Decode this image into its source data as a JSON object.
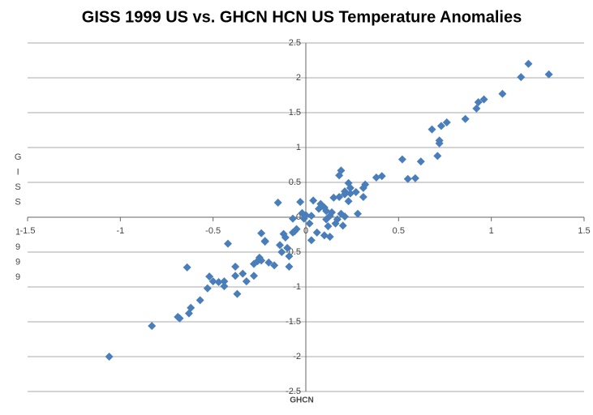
{
  "chart_data": {
    "type": "scatter",
    "title": "GISS 1999 US  vs. GHCN HCN US Temperature Anomalies",
    "x_label": "GHCN",
    "y_label": "GISS 1999",
    "color": "#4a7ebb",
    "grid": true,
    "xlim": [
      -1.5,
      1.5
    ],
    "xticks": [
      -1.5,
      -1,
      -0.5,
      0,
      0.5,
      1,
      1.5
    ],
    "ylim": [
      -2.5,
      2.5
    ],
    "yticks": [
      -2.5,
      -2,
      -1.5,
      -1,
      -0.5,
      0,
      0.5,
      1,
      1.5,
      2,
      2.5
    ],
    "x": [
      -1.06,
      -0.83,
      -0.69,
      -0.68,
      -0.63,
      -0.62,
      -0.64,
      -0.57,
      -0.53,
      -0.52,
      -0.5,
      -0.47,
      -0.44,
      -0.44,
      -0.42,
      -0.38,
      -0.38,
      -0.37,
      -0.34,
      -0.32,
      -0.28,
      -0.28,
      -0.26,
      -0.25,
      -0.24,
      -0.22,
      -0.22,
      -0.24,
      -0.2,
      -0.17,
      -0.15,
      -0.14,
      -0.13,
      -0.12,
      -0.11,
      -0.1,
      -0.09,
      -0.09,
      -0.07,
      -0.07,
      -0.06,
      -0.05,
      -0.03,
      -0.02,
      -0.01,
      0,
      0.02,
      0.03,
      0.03,
      0.04,
      0.06,
      0.07,
      0.08,
      0.1,
      0.11,
      0.1,
      0.11,
      0.12,
      0.13,
      0.13,
      0.14,
      0.15,
      0.16,
      0.17,
      0.18,
      0.18,
      0.19,
      0.19,
      0.2,
      0.21,
      0.21,
      0.21,
      0.23,
      0.23,
      0.24,
      0.24,
      0.28,
      0.27,
      0.31,
      0.31,
      0.32,
      0.38,
      0.41,
      0.52,
      0.55,
      0.59,
      0.62,
      0.68,
      0.71,
      0.72,
      0.72,
      0.73,
      0.76,
      0.86,
      0.92,
      0.93,
      0.96,
      1.06,
      1.16,
      1.2,
      1.31
    ],
    "values": [
      -2,
      -1.56,
      -1.43,
      -1.45,
      -1.38,
      -1.3,
      -0.72,
      -1.19,
      -1.02,
      -0.85,
      -0.92,
      -0.93,
      -0.99,
      -0.92,
      -0.38,
      -0.71,
      -0.84,
      -1.1,
      -0.81,
      -0.92,
      -0.84,
      -0.67,
      -0.63,
      -0.58,
      -0.23,
      -0.35,
      -0.34,
      -0.62,
      -0.65,
      -0.69,
      0.21,
      -0.4,
      -0.5,
      -0.24,
      -0.29,
      -0.44,
      -0.71,
      -0.56,
      -0.02,
      -0.22,
      -0.2,
      -0.17,
      0.22,
      0.06,
      -0.02,
      0.03,
      -0.09,
      0.02,
      -0.33,
      0.24,
      -0.22,
      0.12,
      0.19,
      0.14,
      0.09,
      -0.26,
      -0.03,
      -0.13,
      0.02,
      -0.28,
      0.07,
      0.28,
      -0.09,
      -0.03,
      0.29,
      0.6,
      0.67,
      0.05,
      -0.12,
      0.33,
      0.01,
      0.37,
      0.49,
      0.23,
      0.42,
      0.34,
      0.05,
      0.36,
      0.42,
      0.29,
      0.47,
      0.57,
      0.59,
      0.83,
      0.55,
      0.56,
      0.8,
      1.26,
      0.88,
      1.06,
      1.1,
      1.31,
      1.36,
      1.41,
      1.56,
      1.65,
      1.69,
      1.77,
      2.01,
      2.2,
      2.05
    ]
  }
}
